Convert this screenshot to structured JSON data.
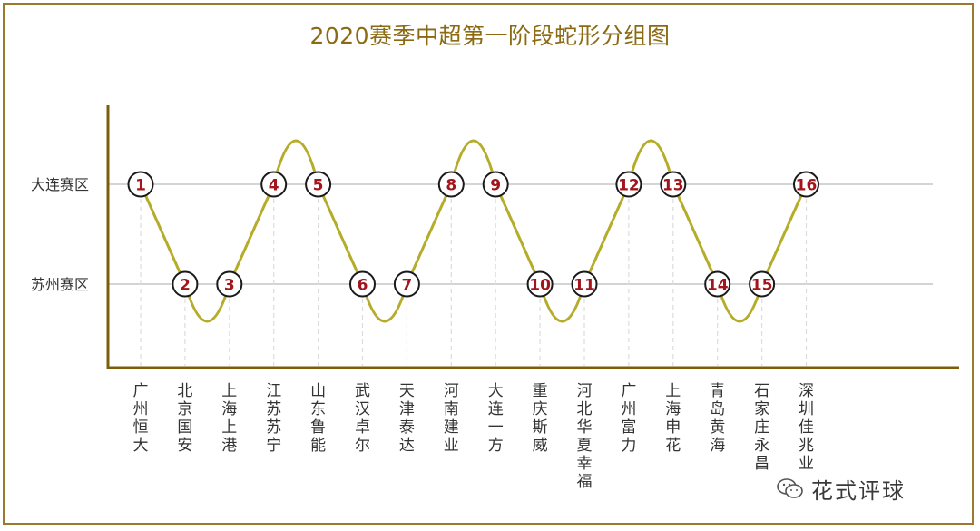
{
  "chart_data": {
    "type": "line",
    "title": "2020赛季中超第一阶段蛇形分组图",
    "categories": [
      "广州恒大",
      "北京国安",
      "上海上港",
      "江苏苏宁",
      "山东鲁能",
      "武汉卓尔",
      "天津泰达",
      "河南建业",
      "大连一方",
      "重庆斯威",
      "河北华夏幸福",
      "广州富力",
      "上海申花",
      "青岛黄海",
      "石家庄永昌",
      "深圳佳兆业"
    ],
    "groups": [
      "大连赛区",
      "苏州赛区"
    ],
    "series": [
      {
        "values": [
          1,
          2,
          2,
          1,
          1,
          2,
          2,
          1,
          1,
          2,
          2,
          1,
          1,
          2,
          2,
          1
        ],
        "seeds": [
          "1",
          "2",
          "3",
          "4",
          "5",
          "6",
          "7",
          "8",
          "9",
          "10",
          "11",
          "12",
          "13",
          "14",
          "15",
          "16"
        ]
      }
    ],
    "grid": true,
    "legend": "none"
  },
  "colors": {
    "curve": "#b5ac2a",
    "axis": "#7d5c0c",
    "title": "#8b6a12",
    "marker_text": "#a3141b",
    "gridline": "#d4d4d4"
  },
  "watermark": {
    "icon": "wechat-icon",
    "text": "花式评球"
  }
}
